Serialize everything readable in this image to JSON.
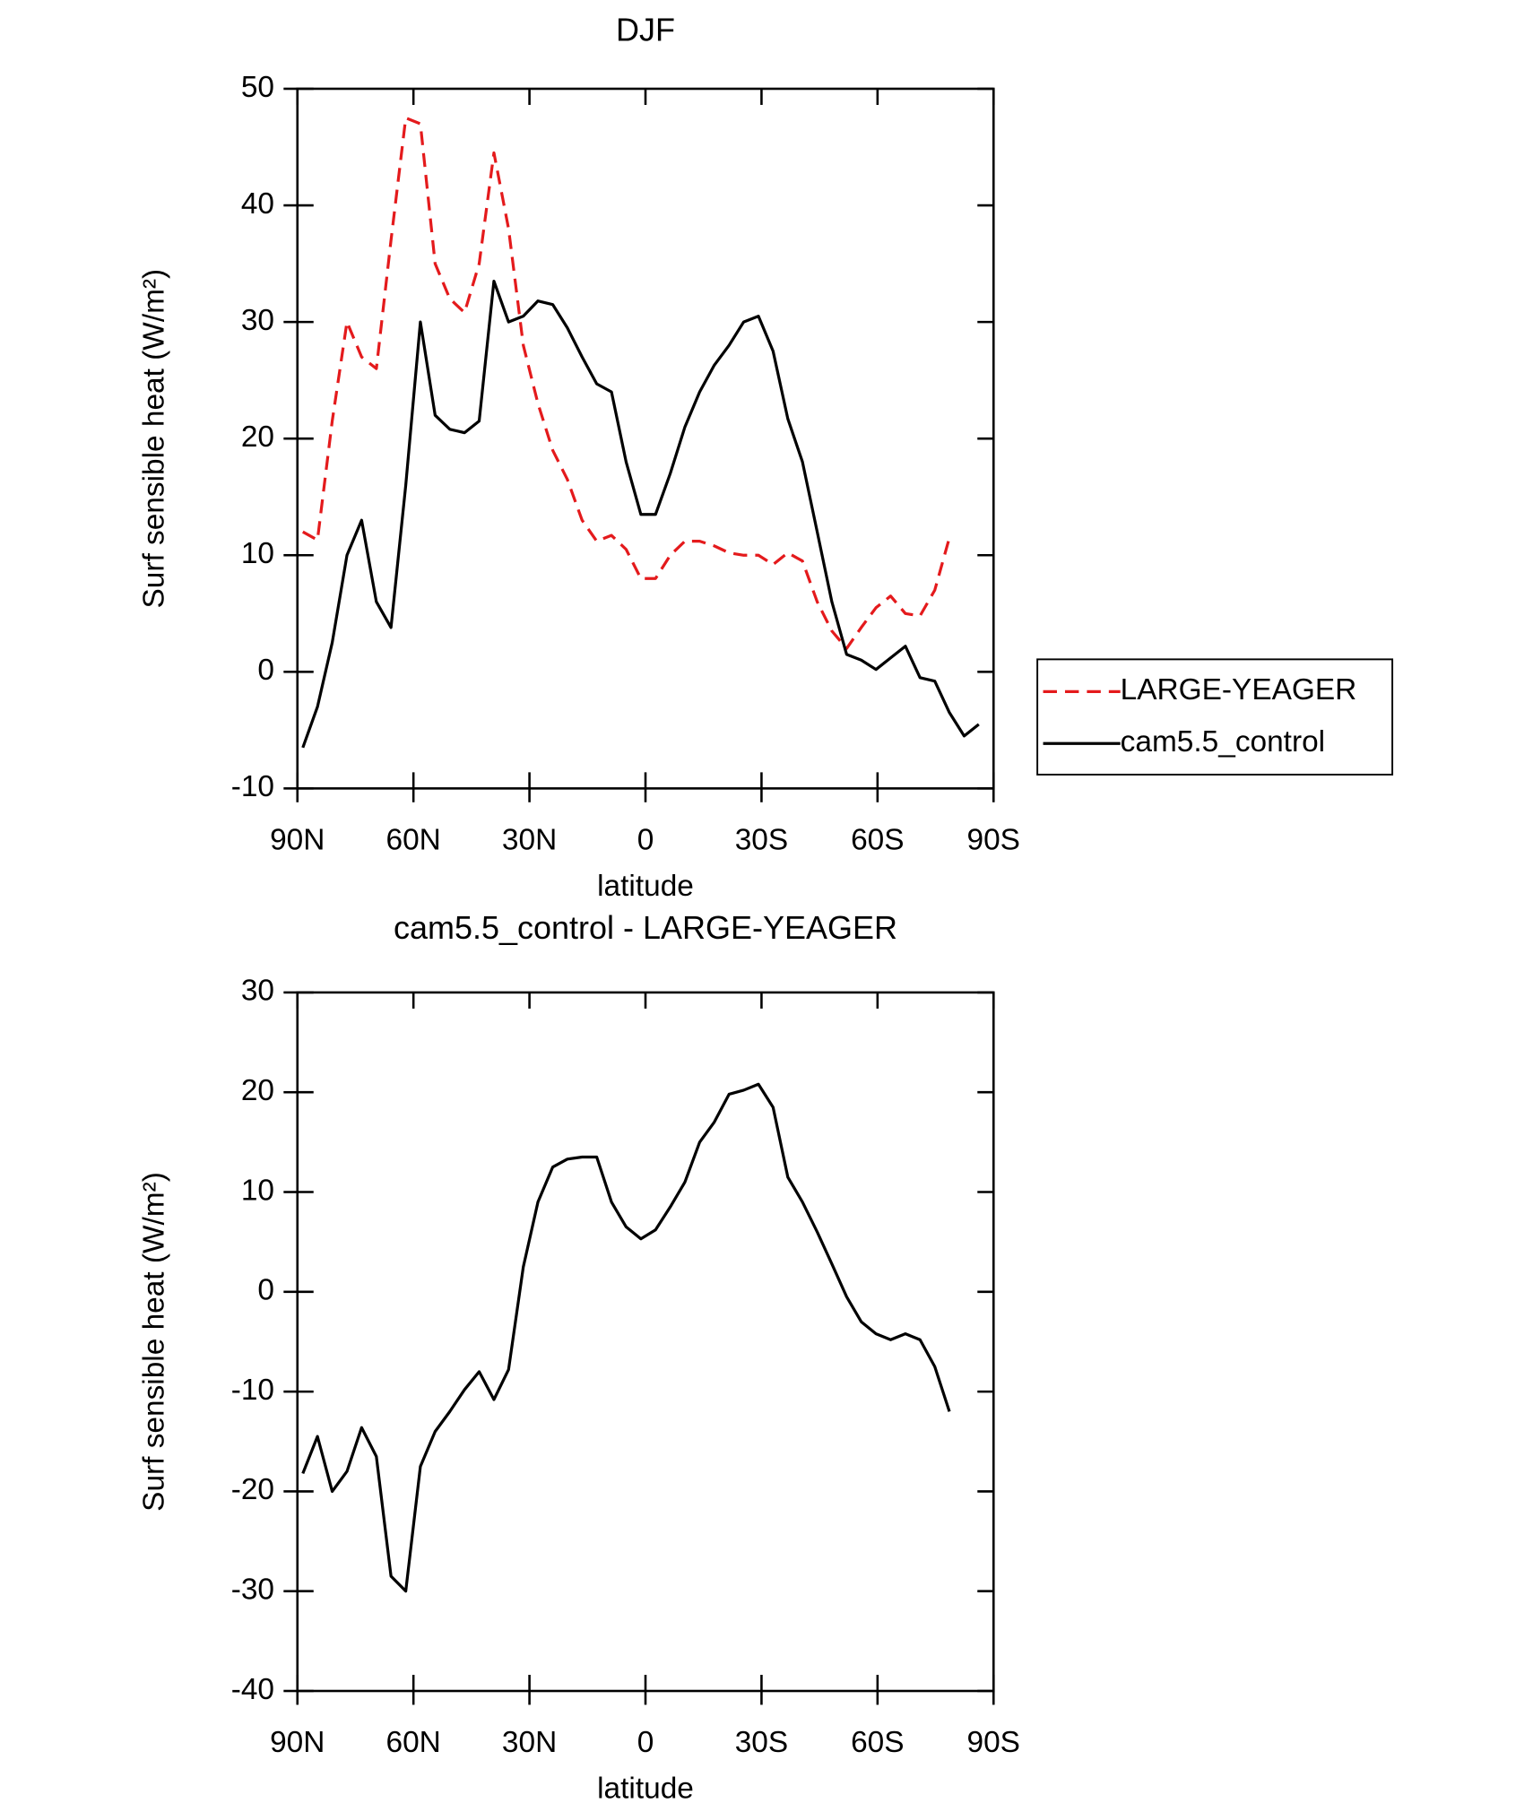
{
  "chart_data": [
    {
      "type": "line",
      "title": "DJF",
      "xlabel": "latitude",
      "ylabel": "Surf sensible heat (W/m²)",
      "x": [
        88.6,
        84.8,
        81.0,
        77.2,
        73.4,
        69.6,
        65.8,
        62.0,
        58.2,
        54.4,
        50.6,
        46.8,
        43.0,
        39.2,
        35.4,
        31.6,
        27.8,
        24.0,
        20.2,
        16.4,
        12.6,
        8.8,
        5.0,
        1.2,
        -2.6,
        -6.4,
        -10.2,
        -14.0,
        -17.8,
        -21.6,
        -25.4,
        -29.2,
        -33.0,
        -36.8,
        -40.6,
        -44.4,
        -48.2,
        -52.0,
        -55.8,
        -59.6,
        -63.4,
        -67.2,
        -71.0,
        -74.8,
        -78.6,
        -82.4,
        -86.2
      ],
      "xlim": [
        90,
        -90
      ],
      "xticks": [
        {
          "value": 90,
          "label": "90N"
        },
        {
          "value": 60,
          "label": "60N"
        },
        {
          "value": 30,
          "label": "30N"
        },
        0,
        {
          "value": -30,
          "label": "30S"
        },
        {
          "value": -60,
          "label": "60S"
        },
        {
          "value": -90,
          "label": "90S"
        }
      ],
      "ylim": [
        -10,
        50
      ],
      "yticks": [
        -10,
        0,
        10,
        20,
        30,
        40,
        50
      ],
      "legend": "right",
      "series": [
        {
          "name": "LARGE-YEAGER",
          "color": "#e41a1c",
          "style": "dashed",
          "values": [
            12,
            11.3,
            21.5,
            30,
            27,
            26,
            37,
            47.5,
            47,
            35,
            32,
            30.8,
            35,
            44.5,
            38,
            28,
            23,
            19,
            16.5,
            13,
            11.2,
            11.7,
            10.5,
            8,
            8,
            10,
            11.2,
            11.2,
            10.8,
            10.2,
            10,
            10,
            9.2,
            10.2,
            9.5,
            6,
            3.5,
            2,
            3.8,
            5.5,
            6.5,
            5,
            4.8,
            7,
            11.5,
            null,
            null
          ]
        },
        {
          "name": "cam5.5_control",
          "color": "#000000",
          "style": "solid",
          "values": [
            -6.5,
            -3,
            2.5,
            10,
            13,
            6,
            3.8,
            16,
            30,
            22,
            20.8,
            20.5,
            21.5,
            33.5,
            30,
            30.5,
            31.8,
            31.5,
            29.5,
            27,
            24.7,
            24,
            18,
            13.5,
            13.5,
            17,
            21,
            24,
            26.3,
            28,
            30,
            30.5,
            27.5,
            21.7,
            18,
            12,
            6,
            1.5,
            1,
            0.2,
            1.2,
            2.2,
            -0.5,
            -0.8,
            -3.5,
            -5.5,
            -4.5
          ]
        }
      ]
    },
    {
      "type": "line",
      "title": "cam5.5_control - LARGE-YEAGER",
      "xlabel": "latitude",
      "ylabel": "Surf sensible heat (W/m²)",
      "x": [
        88.6,
        84.8,
        81.0,
        77.2,
        73.4,
        69.6,
        65.8,
        62.0,
        58.2,
        54.4,
        50.6,
        46.8,
        43.0,
        39.2,
        35.4,
        31.6,
        27.8,
        24.0,
        20.2,
        16.4,
        12.6,
        8.8,
        5.0,
        1.2,
        -2.6,
        -6.4,
        -10.2,
        -14.0,
        -17.8,
        -21.6,
        -25.4,
        -29.2,
        -33.0,
        -36.8,
        -40.6,
        -44.4,
        -48.2,
        -52.0,
        -55.8,
        -59.6,
        -63.4,
        -67.2,
        -71.0,
        -74.8,
        -78.6,
        -82.4,
        -86.2
      ],
      "xlim": [
        90,
        -90
      ],
      "xticks": [
        {
          "value": 90,
          "label": "90N"
        },
        {
          "value": 60,
          "label": "60N"
        },
        {
          "value": 30,
          "label": "30N"
        },
        0,
        {
          "value": -30,
          "label": "30S"
        },
        {
          "value": -60,
          "label": "60S"
        },
        {
          "value": -90,
          "label": "90S"
        }
      ],
      "ylim": [
        -40,
        30
      ],
      "yticks": [
        -40,
        -30,
        -20,
        -10,
        0,
        10,
        20,
        30
      ],
      "series": [
        {
          "color": "#000000",
          "style": "solid",
          "values": [
            -18.2,
            -14.5,
            -20,
            -18,
            -13.6,
            -16.5,
            -28.5,
            -30,
            -17.5,
            -14,
            -12,
            -9.8,
            -8,
            -10.8,
            -7.8,
            2.5,
            9,
            12.5,
            13.3,
            13.5,
            13.5,
            9,
            6.5,
            5.3,
            6.2,
            8.5,
            11,
            15,
            17,
            19.8,
            20.2,
            20.8,
            18.5,
            11.5,
            9,
            6,
            2.8,
            -0.5,
            -3,
            -4.2,
            -4.8,
            -4.2,
            -4.8,
            -7.5,
            -12,
            null,
            null
          ]
        }
      ]
    }
  ]
}
